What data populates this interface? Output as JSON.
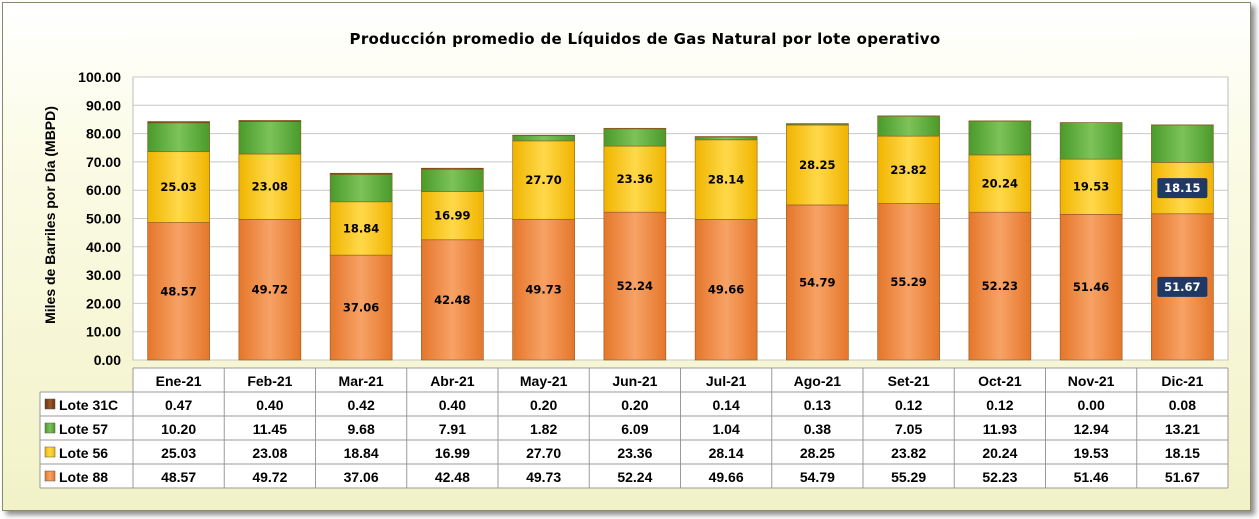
{
  "chart_data": {
    "type": "bar",
    "stacked": true,
    "title": "Producción promedio de Líquidos de Gas Natural por lote operativo",
    "ylabel": "Miles de Barriles por Día (MBPD)",
    "xlabel": "",
    "ylim": [
      0,
      100
    ],
    "yticks": [
      "0.00",
      "10.00",
      "20.00",
      "30.00",
      "40.00",
      "50.00",
      "60.00",
      "70.00",
      "80.00",
      "90.00",
      "100.00"
    ],
    "grid": true,
    "legend": "data-table",
    "categories": [
      "Ene-21",
      "Feb-21",
      "Mar-21",
      "Abr-21",
      "May-21",
      "Jun-21",
      "Jul-21",
      "Ago-21",
      "Set-21",
      "Oct-21",
      "Nov-21",
      "Dic-21"
    ],
    "series": [
      {
        "name": "Lote 88",
        "color": "#f28a3c",
        "show_labels": true,
        "values": [
          48.57,
          49.72,
          37.06,
          42.48,
          49.73,
          52.24,
          49.66,
          54.79,
          55.29,
          52.23,
          51.46,
          51.67
        ],
        "labels": [
          "48.57",
          "49.72",
          "37.06",
          "42.48",
          "49.73",
          "52.24",
          "49.66",
          "54.79",
          "55.29",
          "52.23",
          "51.46",
          "51.67"
        ]
      },
      {
        "name": "Lote 56",
        "color": "#ffc000",
        "show_labels": true,
        "values": [
          25.03,
          23.08,
          18.84,
          16.99,
          27.7,
          23.36,
          28.14,
          28.25,
          23.82,
          20.24,
          19.53,
          18.15
        ],
        "labels": [
          "25.03",
          "23.08",
          "18.84",
          "16.99",
          "27.70",
          "23.36",
          "28.14",
          "28.25",
          "23.82",
          "20.24",
          "19.53",
          "18.15"
        ]
      },
      {
        "name": "Lote 57",
        "color": "#5aa637",
        "show_labels": false,
        "values": [
          10.2,
          11.45,
          9.68,
          7.91,
          1.82,
          6.09,
          1.04,
          0.38,
          7.05,
          11.93,
          12.94,
          13.21
        ],
        "labels": [
          "10.20",
          "11.45",
          "9.68",
          "7.91",
          "1.82",
          "6.09",
          "1.04",
          "0.38",
          "7.05",
          "11.93",
          "12.94",
          "13.21"
        ]
      },
      {
        "name": "Lote 31C",
        "color": "#7a3b12",
        "show_labels": false,
        "values": [
          0.47,
          0.4,
          0.42,
          0.4,
          0.2,
          0.2,
          0.14,
          0.13,
          0.12,
          0.12,
          0.0,
          0.08
        ],
        "labels": [
          "0.47",
          "0.40",
          "0.42",
          "0.40",
          "0.20",
          "0.20",
          "0.14",
          "0.13",
          "0.12",
          "0.12",
          "0.00",
          "0.08"
        ]
      }
    ],
    "table_row_order": [
      "Lote 31C",
      "Lote 57",
      "Lote 56",
      "Lote 88"
    ],
    "highlighted_label_category": "Dic-21",
    "highlight_color": "#1f3864"
  }
}
